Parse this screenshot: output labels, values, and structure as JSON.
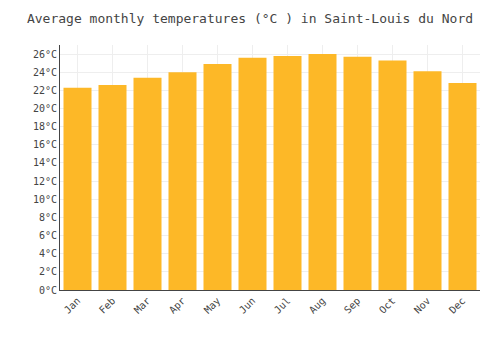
{
  "chart_data": {
    "type": "bar",
    "title": "Average monthly temperatures (°C ) in Saint-Louis du Nord",
    "categories": [
      "Jan",
      "Feb",
      "Mar",
      "Apr",
      "May",
      "Jun",
      "Jul",
      "Aug",
      "Sep",
      "Oct",
      "Nov",
      "Dec"
    ],
    "values": [
      22.3,
      22.6,
      23.4,
      24.0,
      24.9,
      25.6,
      25.8,
      26.0,
      25.7,
      25.3,
      24.1,
      22.8
    ],
    "color": "#FDB827",
    "ylim": [
      0,
      27
    ],
    "yticks": [
      {
        "value": 0,
        "label": "0°C"
      },
      {
        "value": 2,
        "label": "2°C"
      },
      {
        "value": 4,
        "label": "4°C"
      },
      {
        "value": 6,
        "label": "6°C"
      },
      {
        "value": 8,
        "label": "8°C"
      },
      {
        "value": 10,
        "label": "10°C"
      },
      {
        "value": 12,
        "label": "12°C"
      },
      {
        "value": 14,
        "label": "14°C"
      },
      {
        "value": 16,
        "label": "16°C"
      },
      {
        "value": 18,
        "label": "18°C"
      },
      {
        "value": 20,
        "label": "20°C"
      },
      {
        "value": 22,
        "label": "22°C"
      },
      {
        "value": 24,
        "label": "24°C"
      },
      {
        "value": 26,
        "label": "26°C"
      }
    ],
    "grid": true
  }
}
